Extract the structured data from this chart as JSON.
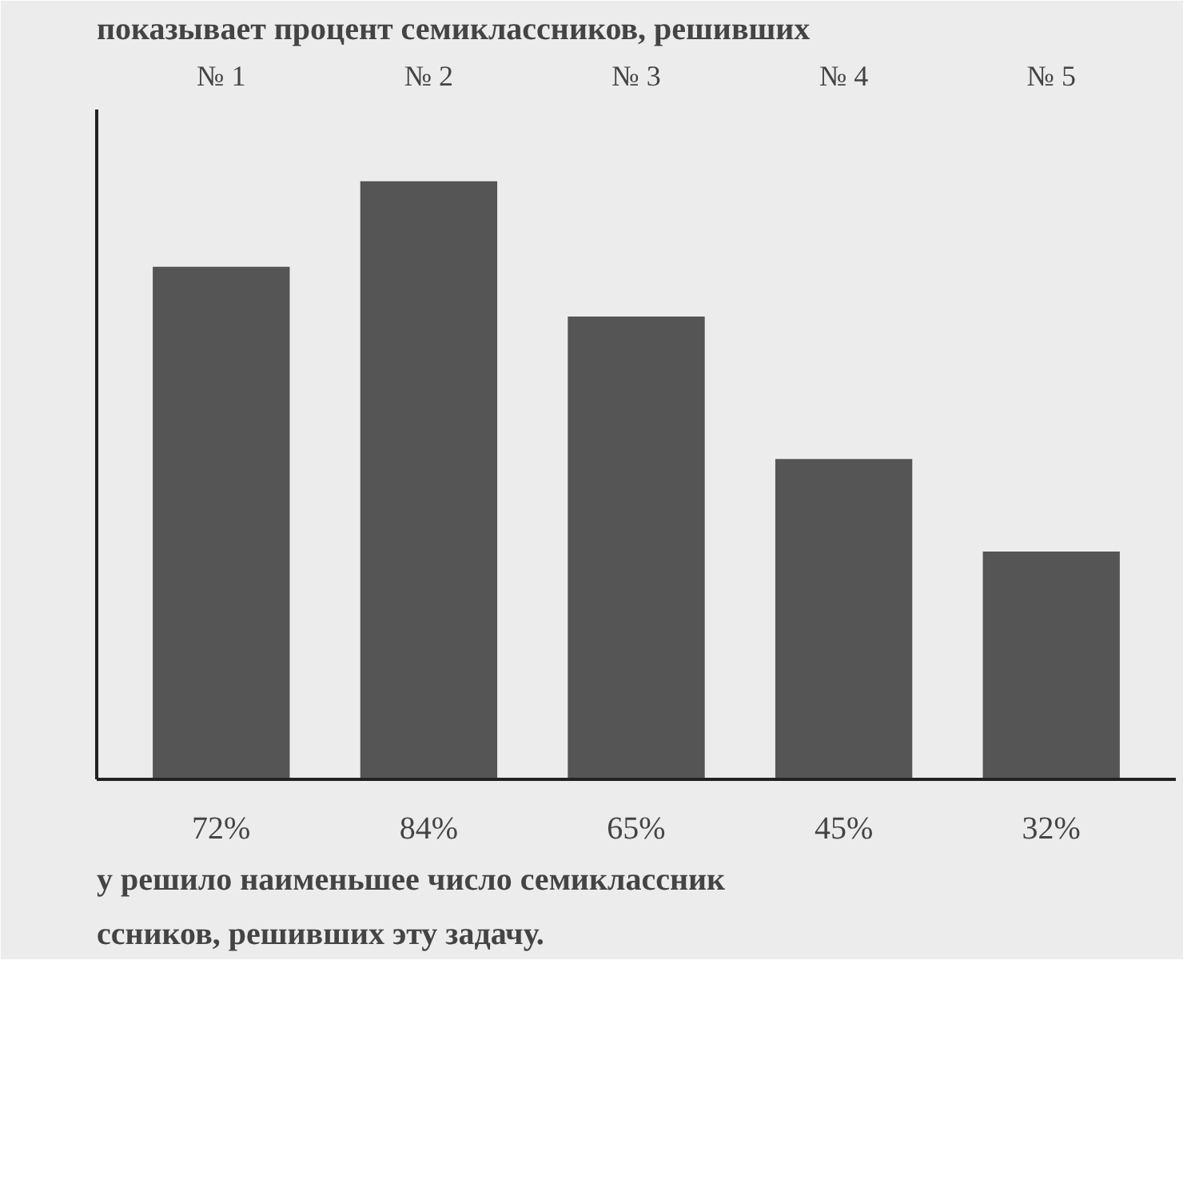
{
  "chart_data": {
    "type": "bar",
    "title": "показывает процент семиклассников, решивших",
    "categories": [
      "№ 1",
      "№ 2",
      "№ 3",
      "№ 4",
      "№ 5"
    ],
    "values": [
      72,
      84,
      65,
      45,
      32
    ],
    "color": "#555555",
    "data_labels": true,
    "value_labels": [
      "72%",
      "84%",
      "65%",
      "45%",
      "32%"
    ],
    "annotations": [
      "у решило наименьшее число семиклассник",
      "ссников, решивших эту задачу."
    ],
    "grid": false
  }
}
